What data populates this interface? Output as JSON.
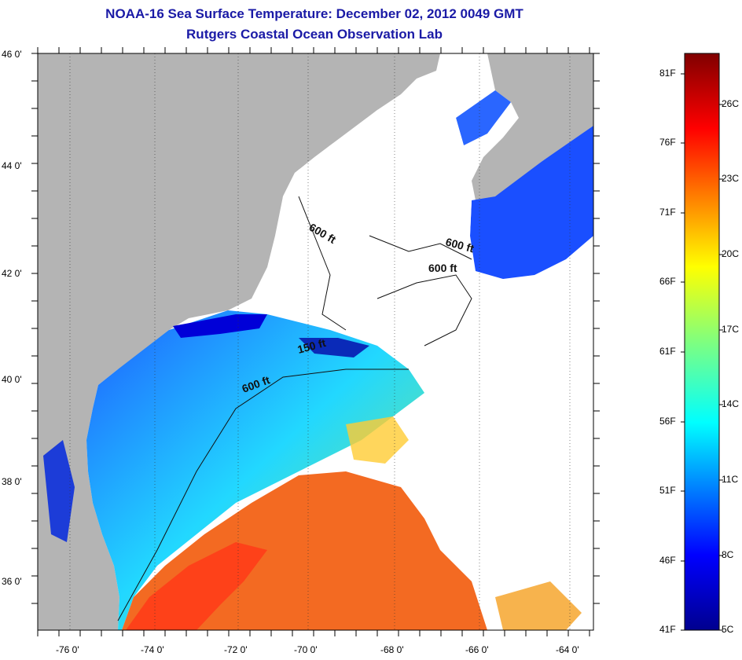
{
  "header": {
    "title": "NOAA-16 Sea Surface Temperature:  December 02, 2012 0049 GMT",
    "subtitle": "Rutgers Coastal Ocean Observation Lab"
  },
  "axes": {
    "lat_ticks": [
      "46 0'",
      "44 0'",
      "42 0'",
      "40 0'",
      "38 0'",
      "36 0'"
    ],
    "lon_ticks": [
      "-76 0'",
      "-74 0'",
      "-72 0'",
      "-70 0'",
      "-68 0'",
      "-66 0'",
      "-64 0'"
    ]
  },
  "map_labels": {
    "contour_a": "600 ft",
    "contour_b": "600 ft",
    "contour_c": "600 ft",
    "contour_d": "150 ft",
    "contour_e": "600 ft"
  },
  "colorbar": {
    "fahrenheit": [
      "81F",
      "76F",
      "71F",
      "66F",
      "61F",
      "56F",
      "51F",
      "46F",
      "41F"
    ],
    "celsius": [
      "26C",
      "23C",
      "20C",
      "17C",
      "14C",
      "11C",
      "8C",
      "5C"
    ]
  },
  "colors": {
    "land": "#b4b4b4",
    "cloud": "#ffffff",
    "title": "#1a1aa6"
  }
}
